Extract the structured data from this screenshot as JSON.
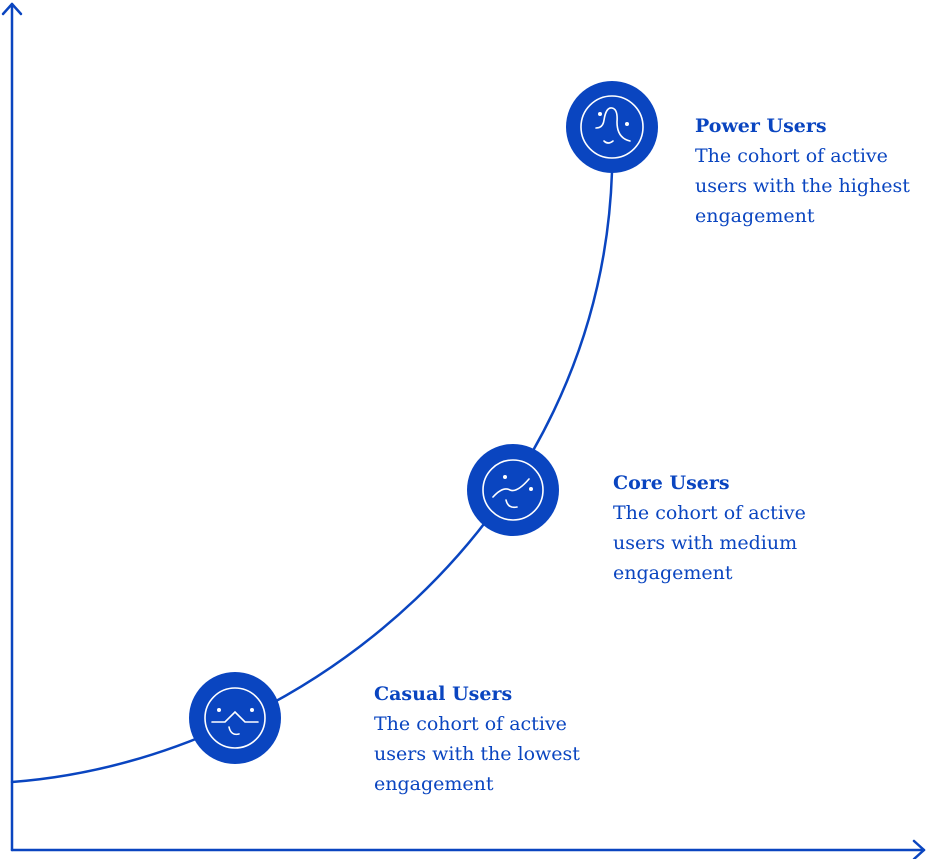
{
  "colors": {
    "accent": "#0a45c0",
    "background": "#ffffff"
  },
  "stages": [
    {
      "title": "Casual Users",
      "description": "The cohort of active users with the lowest engagement",
      "icon": "face-flat-line-icon"
    },
    {
      "title": "Core Users",
      "description": "The cohort of active users with medium engagement",
      "icon": "face-rising-line-icon"
    },
    {
      "title": "Power Users",
      "description": "The cohort of active users with the highest engagement",
      "icon": "face-peak-line-icon"
    }
  ]
}
